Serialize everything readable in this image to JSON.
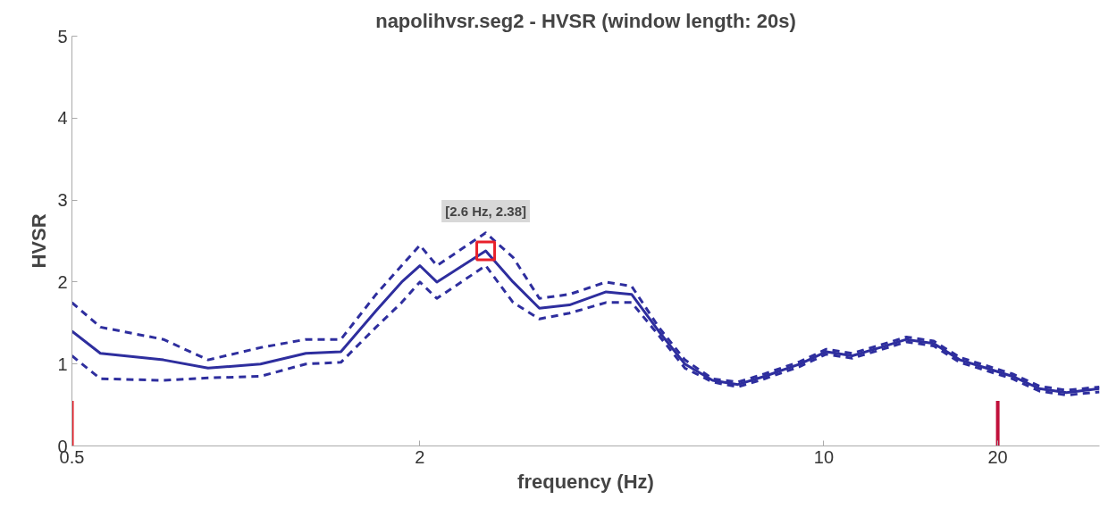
{
  "chart_data": {
    "type": "line",
    "title": "napolihvsr.seg2 - HVSR (window length: 20s)",
    "xlabel": "frequency (Hz)",
    "ylabel": "HVSR",
    "log": "x",
    "xlim": [
      0.5,
      30
    ],
    "ylim": [
      0,
      5
    ],
    "xticks": [
      0.5,
      2,
      10,
      20
    ],
    "yticks": [
      0,
      1,
      2,
      3,
      4,
      5
    ],
    "grid": false,
    "x": [
      0.5,
      0.56,
      0.72,
      0.86,
      1.06,
      1.27,
      1.46,
      1.68,
      1.86,
      2.0,
      2.14,
      2.6,
      2.9,
      3.22,
      3.63,
      4.2,
      4.65,
      5.18,
      5.75,
      6.42,
      7.1,
      7.9,
      9.1,
      10.1,
      11.2,
      12.5,
      13.9,
      15.5,
      17.2,
      19.1,
      21.2,
      23.6,
      26.3,
      30
    ],
    "series": [
      {
        "color": "#2e2e9e",
        "line_style": "solid",
        "values": [
          1.4,
          1.13,
          1.05,
          0.95,
          1.0,
          1.13,
          1.15,
          1.65,
          2.0,
          2.2,
          2.0,
          2.38,
          2.0,
          1.68,
          1.72,
          1.88,
          1.85,
          1.4,
          1.0,
          0.8,
          0.75,
          0.85,
          1.0,
          1.15,
          1.1,
          1.2,
          1.3,
          1.25,
          1.05,
          0.95,
          0.85,
          0.7,
          0.65,
          0.7
        ]
      },
      {
        "color": "#2e2e9e",
        "line_style": "dashed",
        "values": [
          1.75,
          1.45,
          1.3,
          1.05,
          1.2,
          1.3,
          1.3,
          1.85,
          2.2,
          2.45,
          2.2,
          2.6,
          2.3,
          1.8,
          1.85,
          2.0,
          1.95,
          1.45,
          1.05,
          0.82,
          0.78,
          0.88,
          1.03,
          1.18,
          1.13,
          1.23,
          1.33,
          1.28,
          1.08,
          0.98,
          0.88,
          0.73,
          0.68,
          0.72
        ]
      },
      {
        "color": "#2e2e9e",
        "line_style": "dashed",
        "values": [
          1.1,
          0.82,
          0.8,
          0.83,
          0.85,
          1.0,
          1.02,
          1.45,
          1.75,
          2.0,
          1.8,
          2.2,
          1.75,
          1.55,
          1.62,
          1.75,
          1.75,
          1.35,
          0.95,
          0.78,
          0.72,
          0.82,
          0.97,
          1.12,
          1.07,
          1.17,
          1.27,
          1.22,
          1.02,
          0.92,
          0.82,
          0.67,
          0.62,
          0.66
        ]
      },
      {
        "type": "scatter",
        "marker": "square",
        "color": "#e8202a",
        "x": [
          2.6
        ],
        "values": [
          2.38
        ]
      }
    ],
    "annotations": [
      {
        "text": "[2.6 Hz, 2.38]",
        "x": 2.6,
        "y": 2.38
      }
    ],
    "ref_lines": [
      {
        "axis": "x",
        "value": 0.5,
        "color": "#e8202a"
      },
      {
        "axis": "x",
        "value": 20,
        "color": "#c0103a"
      }
    ]
  }
}
